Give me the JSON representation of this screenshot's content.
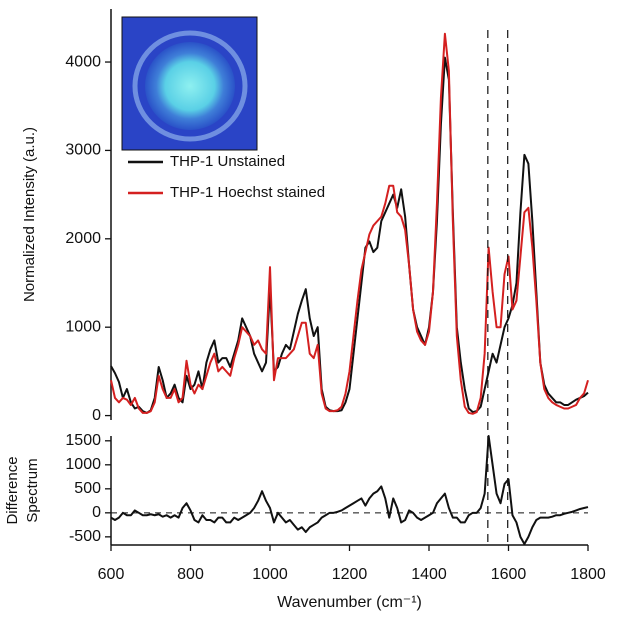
{
  "chart_data": [
    {
      "type": "line",
      "ylabel": "Normalized Intensity (a.u.)",
      "x": [
        600,
        610,
        620,
        630,
        640,
        650,
        660,
        670,
        680,
        690,
        700,
        710,
        720,
        730,
        740,
        750,
        760,
        770,
        780,
        790,
        800,
        810,
        820,
        830,
        840,
        850,
        860,
        870,
        880,
        890,
        900,
        910,
        920,
        930,
        940,
        950,
        960,
        970,
        980,
        990,
        1000,
        1010,
        1020,
        1030,
        1040,
        1050,
        1060,
        1070,
        1080,
        1090,
        1100,
        1110,
        1120,
        1130,
        1140,
        1150,
        1160,
        1170,
        1180,
        1190,
        1200,
        1210,
        1220,
        1230,
        1240,
        1250,
        1260,
        1270,
        1280,
        1290,
        1300,
        1310,
        1320,
        1330,
        1340,
        1350,
        1360,
        1370,
        1380,
        1390,
        1400,
        1410,
        1420,
        1430,
        1440,
        1450,
        1460,
        1470,
        1480,
        1490,
        1500,
        1510,
        1520,
        1530,
        1540,
        1550,
        1560,
        1570,
        1580,
        1590,
        1600,
        1610,
        1620,
        1630,
        1640,
        1650,
        1660,
        1670,
        1680,
        1690,
        1700,
        1710,
        1720,
        1730,
        1740,
        1750,
        1760,
        1770,
        1780,
        1790,
        1800
      ],
      "xlim": [
        600,
        1800
      ],
      "ylim": [
        -50,
        4600
      ],
      "yticks": [
        0,
        1000,
        2000,
        3000,
        4000
      ],
      "legend": "upper left",
      "series": [
        {
          "name": "THP-1 Unstained",
          "color": "#111111",
          "values": [
            560,
            480,
            380,
            200,
            300,
            150,
            80,
            100,
            50,
            30,
            60,
            200,
            550,
            400,
            200,
            250,
            350,
            200,
            150,
            450,
            300,
            350,
            500,
            300,
            600,
            750,
            850,
            600,
            650,
            650,
            550,
            700,
            850,
            1100,
            1000,
            900,
            700,
            600,
            500,
            600,
            1450,
            500,
            550,
            700,
            800,
            750,
            950,
            1150,
            1300,
            1430,
            1100,
            900,
            1000,
            300,
            100,
            60,
            50,
            50,
            60,
            150,
            300,
            700,
            1100,
            1500,
            1900,
            1970,
            1850,
            1900,
            2200,
            2300,
            2400,
            2500,
            2350,
            2560,
            2250,
            1700,
            1200,
            1000,
            900,
            800,
            1000,
            1400,
            2200,
            3300,
            4050,
            3800,
            2300,
            1000,
            600,
            300,
            80,
            40,
            50,
            100,
            300,
            500,
            700,
            600,
            800,
            1000,
            1100,
            1250,
            1500,
            2300,
            2950,
            2850,
            2200,
            1400,
            600,
            350,
            250,
            200,
            150,
            150,
            120,
            120,
            150,
            180,
            200,
            220,
            260
          ]
        },
        {
          "name": "THP-1 Hoechst stained",
          "color": "#d42020",
          "values": [
            400,
            200,
            150,
            200,
            180,
            120,
            200,
            80,
            30,
            30,
            50,
            150,
            450,
            300,
            200,
            200,
            300,
            150,
            200,
            620,
            350,
            250,
            350,
            300,
            450,
            600,
            700,
            500,
            550,
            500,
            450,
            650,
            800,
            1000,
            950,
            900,
            800,
            850,
            750,
            700,
            1680,
            400,
            650,
            650,
            650,
            700,
            750,
            900,
            1050,
            1050,
            700,
            650,
            800,
            250,
            80,
            50,
            50,
            60,
            100,
            250,
            500,
            900,
            1300,
            1650,
            1850,
            2050,
            2150,
            2200,
            2250,
            2400,
            2600,
            2600,
            2300,
            2250,
            2100,
            1700,
            1200,
            950,
            850,
            800,
            950,
            1400,
            2400,
            3600,
            4320,
            3900,
            2200,
            900,
            400,
            100,
            30,
            20,
            40,
            200,
            700,
            1900,
            1400,
            1000,
            1000,
            1600,
            1800,
            1200,
            1300,
            1800,
            2300,
            2350,
            1900,
            1300,
            600,
            300,
            200,
            150,
            120,
            100,
            80,
            80,
            100,
            120,
            200,
            250,
            400
          ]
        }
      ]
    },
    {
      "type": "line",
      "ylabel": [
        "Difference",
        "Spectrum"
      ],
      "xlabel": "Wavenumber (cm⁻¹)",
      "x": [
        600,
        610,
        620,
        630,
        640,
        650,
        660,
        670,
        680,
        690,
        700,
        710,
        720,
        730,
        740,
        750,
        760,
        770,
        780,
        790,
        800,
        810,
        820,
        830,
        840,
        850,
        860,
        870,
        880,
        890,
        900,
        910,
        920,
        930,
        940,
        950,
        960,
        970,
        980,
        990,
        1000,
        1010,
        1020,
        1030,
        1040,
        1050,
        1060,
        1070,
        1080,
        1090,
        1100,
        1110,
        1120,
        1130,
        1140,
        1150,
        1160,
        1170,
        1180,
        1190,
        1200,
        1210,
        1220,
        1230,
        1240,
        1250,
        1260,
        1270,
        1280,
        1290,
        1300,
        1310,
        1320,
        1330,
        1340,
        1350,
        1360,
        1370,
        1380,
        1390,
        1400,
        1410,
        1420,
        1430,
        1440,
        1450,
        1460,
        1470,
        1480,
        1490,
        1500,
        1510,
        1520,
        1530,
        1540,
        1550,
        1560,
        1570,
        1580,
        1590,
        1600,
        1610,
        1620,
        1630,
        1640,
        1650,
        1660,
        1670,
        1680,
        1690,
        1700,
        1710,
        1720,
        1730,
        1740,
        1750,
        1760,
        1770,
        1780,
        1790,
        1800
      ],
      "xlim": [
        600,
        1800
      ],
      "xticks": [
        600,
        800,
        1000,
        1200,
        1400,
        1600,
        1800
      ],
      "ylim": [
        -670,
        1600
      ],
      "yticks": [
        -500,
        0,
        500,
        1000,
        1500
      ],
      "zero_line": 0,
      "vlines": [
        1548,
        1598
      ],
      "series": [
        {
          "color": "#111111",
          "values": [
            -100,
            -150,
            -100,
            0,
            -50,
            -50,
            50,
            0,
            -50,
            -50,
            -30,
            -50,
            -30,
            -80,
            -50,
            -100,
            -50,
            -100,
            100,
            200,
            50,
            -150,
            -200,
            -50,
            -150,
            -150,
            -200,
            -100,
            -100,
            -200,
            -200,
            -100,
            -150,
            -100,
            -50,
            0,
            100,
            250,
            450,
            250,
            100,
            -200,
            0,
            -100,
            -200,
            -150,
            -250,
            -350,
            -300,
            -400,
            -300,
            -250,
            -200,
            -100,
            -50,
            0,
            0,
            20,
            50,
            100,
            150,
            200,
            250,
            300,
            150,
            300,
            400,
            450,
            550,
            300,
            -100,
            300,
            100,
            -200,
            -150,
            50,
            0,
            -100,
            -150,
            -100,
            -50,
            0,
            200,
            300,
            400,
            100,
            -100,
            -100,
            -200,
            -200,
            -50,
            0,
            0,
            100,
            400,
            1600,
            1000,
            400,
            200,
            600,
            700,
            -50,
            -200,
            -500,
            -650,
            -500,
            -300,
            -150,
            -100,
            -100,
            -100,
            -80,
            -50,
            -50,
            -20,
            0,
            20,
            50,
            80,
            100,
            120
          ]
        }
      ]
    }
  ]
}
